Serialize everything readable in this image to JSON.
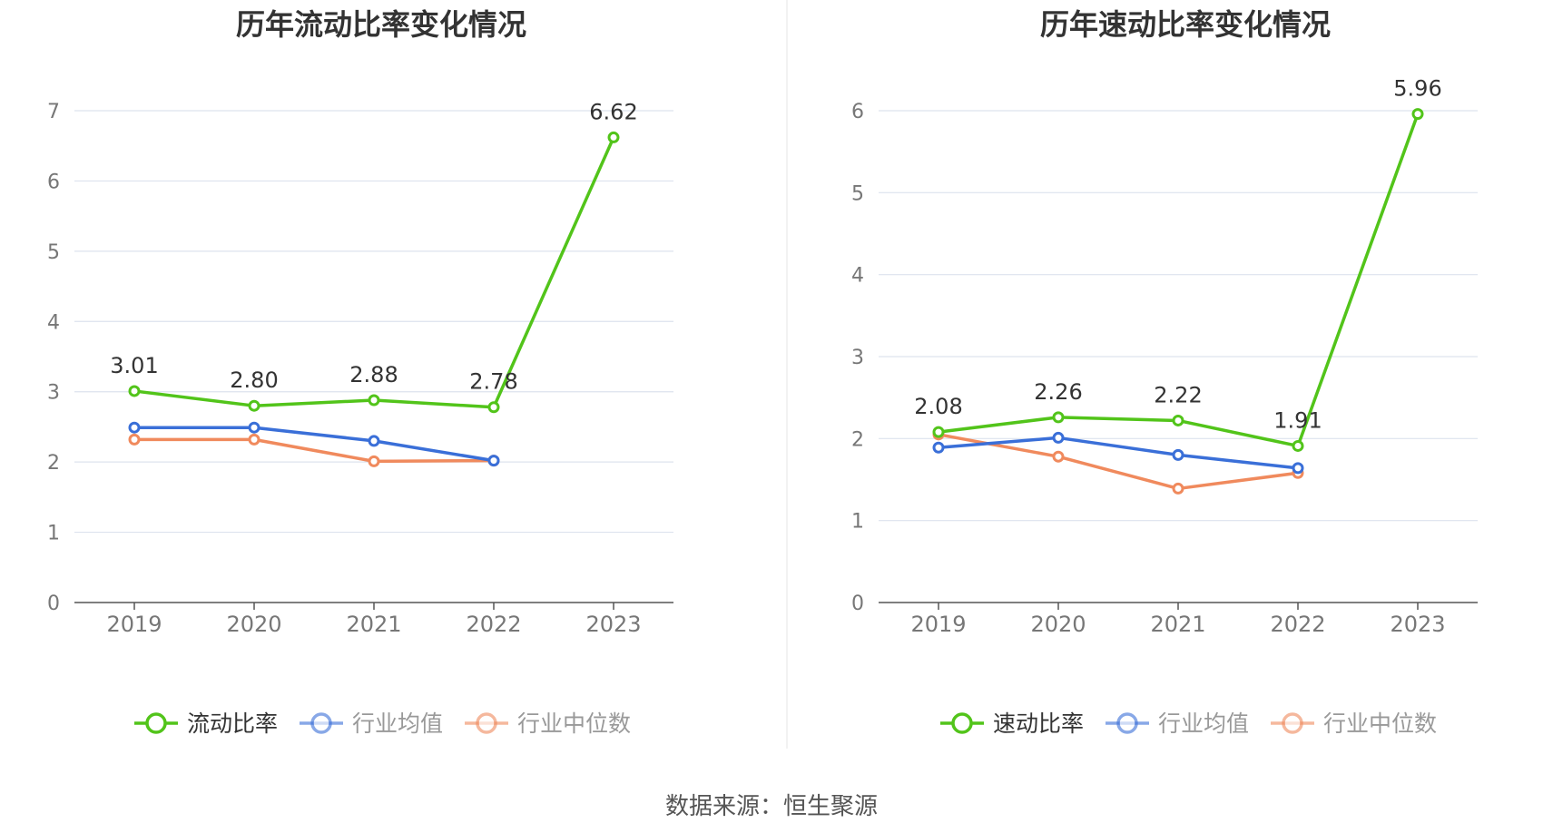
{
  "footer": {
    "source": "数据来源：恒生聚源"
  },
  "colors": {
    "green": "#52c41a",
    "blue": "#3a6fd8",
    "orange": "#f08a5d",
    "grid": "#dde3ee",
    "axis": "#555555",
    "tick": "#777777"
  },
  "chart_data": [
    {
      "type": "line",
      "title": "历年流动比率变化情况",
      "categories": [
        "2019",
        "2020",
        "2021",
        "2022",
        "2023"
      ],
      "ylim": [
        0,
        7
      ],
      "yticks": [
        "0",
        "1",
        "2",
        "3",
        "4",
        "5",
        "6",
        "7"
      ],
      "grid": true,
      "legend": "bottom",
      "series": [
        {
          "name": "流动比率",
          "color": "#52c41a",
          "values": [
            3.01,
            2.8,
            2.88,
            2.78,
            6.62
          ],
          "labels": [
            "3.01",
            "2.80",
            "2.88",
            "2.78",
            "6.62"
          ]
        },
        {
          "name": "行业均值",
          "color": "#3a6fd8",
          "values": [
            2.49,
            2.49,
            2.3,
            2.02,
            null
          ]
        },
        {
          "name": "行业中位数",
          "color": "#f08a5d",
          "values": [
            2.32,
            2.32,
            2.01,
            2.02,
            null
          ]
        }
      ]
    },
    {
      "type": "line",
      "title": "历年速动比率变化情况",
      "categories": [
        "2019",
        "2020",
        "2021",
        "2022",
        "2023"
      ],
      "ylim": [
        0,
        6
      ],
      "yticks": [
        "0",
        "1",
        "2",
        "3",
        "4",
        "5",
        "6"
      ],
      "grid": true,
      "legend": "bottom",
      "series": [
        {
          "name": "速动比率",
          "color": "#52c41a",
          "values": [
            2.08,
            2.26,
            2.22,
            1.91,
            5.96
          ],
          "labels": [
            "2.08",
            "2.26",
            "2.22",
            "1.91",
            "5.96"
          ]
        },
        {
          "name": "行业均值",
          "color": "#3a6fd8",
          "values": [
            1.89,
            2.01,
            1.8,
            1.64,
            null
          ]
        },
        {
          "name": "行业中位数",
          "color": "#f08a5d",
          "values": [
            2.05,
            1.78,
            1.39,
            1.58,
            null
          ]
        }
      ]
    }
  ]
}
